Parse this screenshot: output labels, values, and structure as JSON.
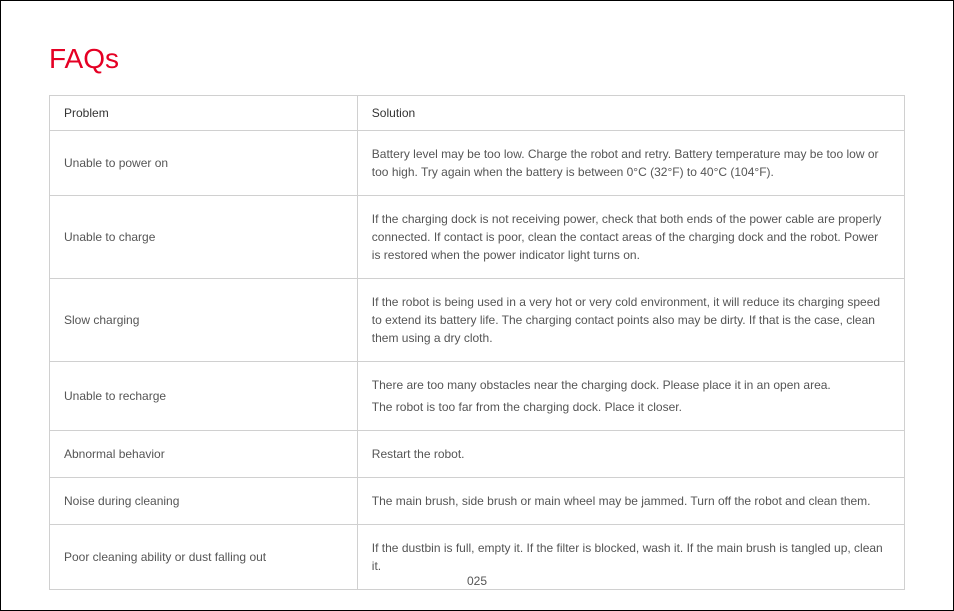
{
  "title": "FAQs",
  "title_color": "#e50024",
  "header": {
    "problem": "Problem",
    "solution": "Solution"
  },
  "rows": [
    {
      "problem": "Unable to power on",
      "solution": "Battery level may be too low. Charge the robot and retry. Battery temperature may be too low or too high. Try again when the battery is between 0°C (32°F) to 40°C (104°F)."
    },
    {
      "problem": "Unable to charge",
      "solution": "If the charging dock is not receiving power, check that both ends of the power cable are properly connected. If contact is poor, clean the contact areas of the charging dock and the robot. Power is restored when the power indicator light turns on."
    },
    {
      "problem": "Slow charging",
      "solution": "If the robot is being used in a very hot or very cold environment, it will reduce its charging speed to extend its battery life. The charging contact points also may be dirty. If that is the case, clean them using a dry cloth."
    },
    {
      "problem": "Unable to recharge",
      "solution_lines": [
        "There are too many obstacles near the charging dock. Please place it in an open area.",
        "The robot is too far from the charging dock. Place it closer."
      ]
    },
    {
      "problem": "Abnormal behavior",
      "solution": "Restart the robot."
    },
    {
      "problem": "Noise during cleaning",
      "solution": "The main brush, side brush or main wheel may be jammed. Turn off the robot and clean them."
    },
    {
      "problem": "Poor cleaning ability or dust falling out",
      "solution": "If the dustbin is full, empty it. If the filter is blocked, wash it. If the main brush is tangled up, clean it."
    }
  ],
  "page_number": "025",
  "text_color": "#555555",
  "border_color": "#d0d0d0",
  "background_color": "#ffffff"
}
